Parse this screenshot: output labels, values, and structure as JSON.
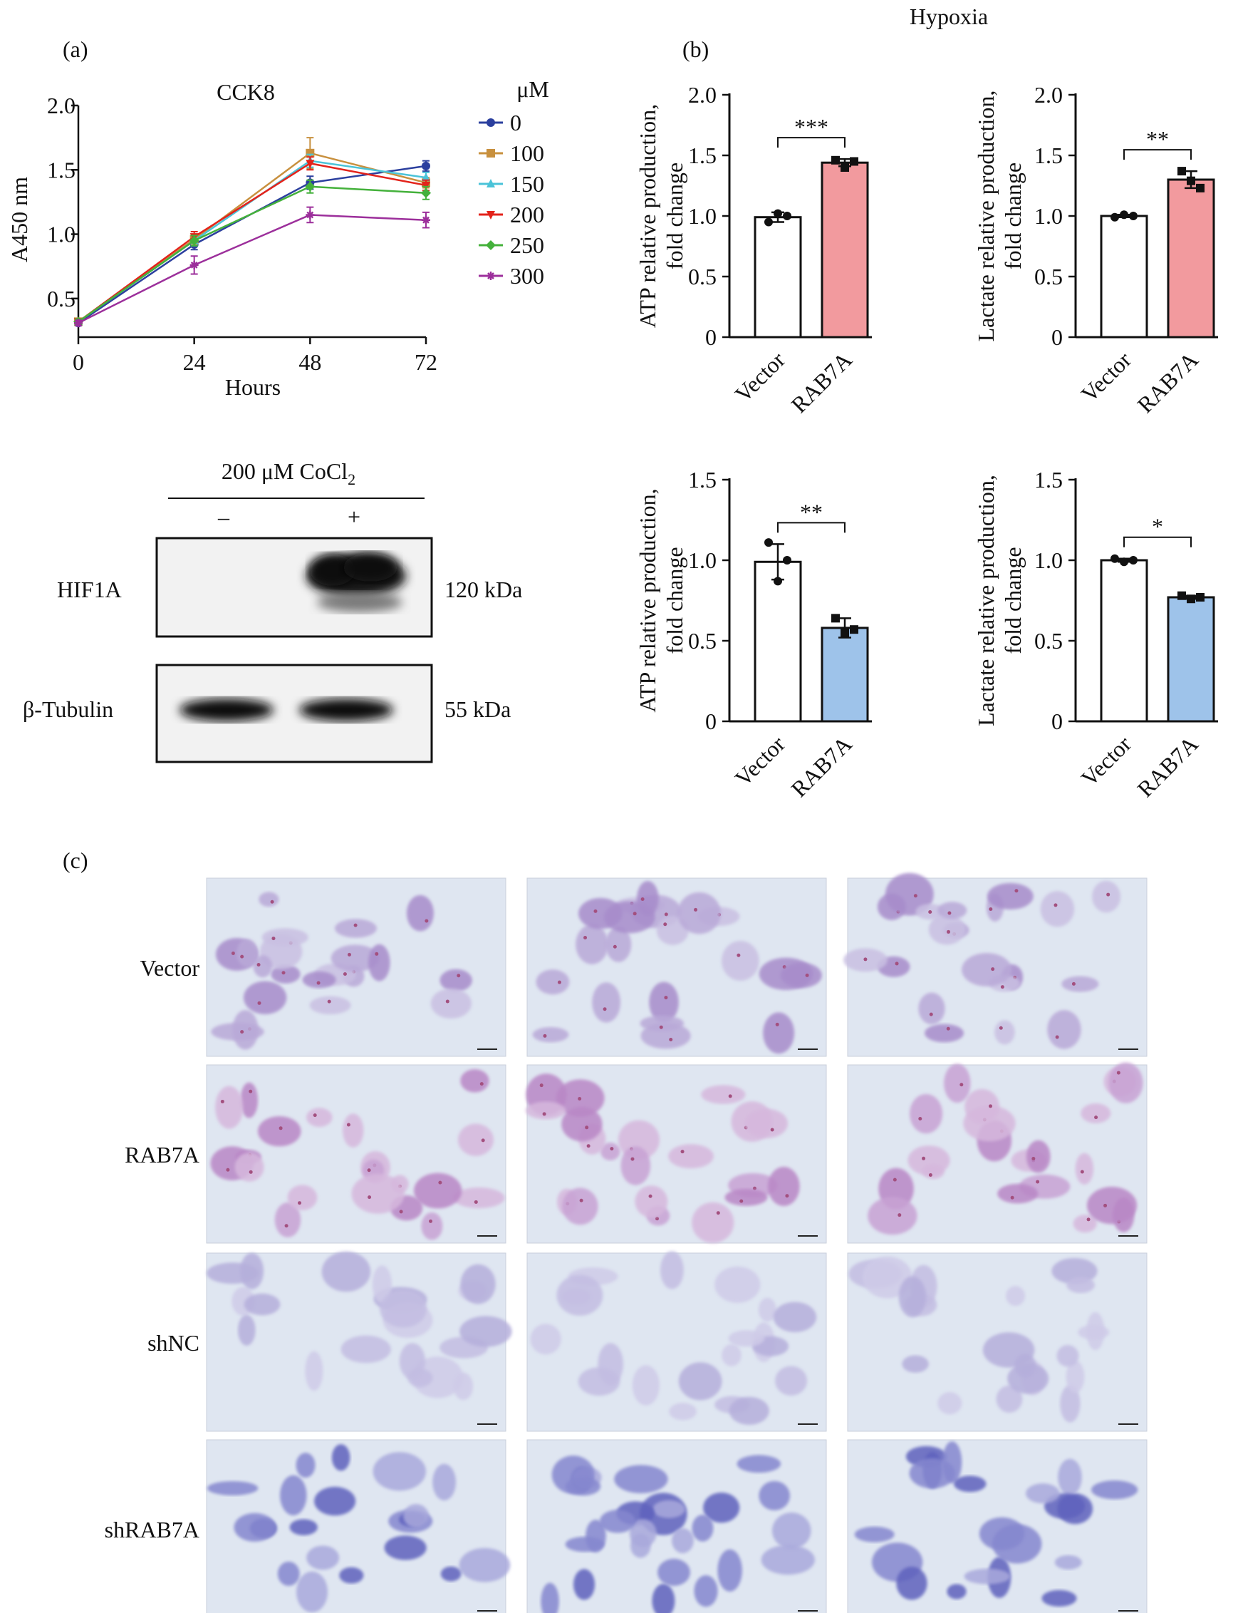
{
  "panels": {
    "a": "(a)",
    "b": "(b)",
    "c": "(c)",
    "hypoxia": "Hypoxia"
  },
  "chart_data": [
    {
      "id": "cck8",
      "type": "line",
      "title": "CCK8",
      "xlabel": "Hours",
      "ylabel": "A450 nm",
      "x": [
        0,
        24,
        48,
        72
      ],
      "xticks": [
        "0",
        "24",
        "48",
        "72"
      ],
      "yticks": [
        "0.5",
        "1.0",
        "1.5",
        "2.0"
      ],
      "xlim": [
        0,
        72
      ],
      "ylim": [
        0.2,
        2.0
      ],
      "legend_title": "μM",
      "legend_position": "right",
      "series": [
        {
          "name": "0",
          "color": "#2b3f9e",
          "marker": "circle",
          "values": [
            0.31,
            0.92,
            1.4,
            1.53
          ],
          "errors": [
            0.02,
            0.04,
            0.05,
            0.04
          ]
        },
        {
          "name": "100",
          "color": "#c8903e",
          "marker": "square",
          "values": [
            0.32,
            0.96,
            1.63,
            1.4
          ],
          "errors": [
            0.02,
            0.04,
            0.12,
            0.04
          ]
        },
        {
          "name": "150",
          "color": "#4ac3d8",
          "marker": "triangle",
          "values": [
            0.32,
            0.95,
            1.57,
            1.44
          ],
          "errors": [
            0.02,
            0.04,
            0.05,
            0.04
          ]
        },
        {
          "name": "200",
          "color": "#e3231b",
          "marker": "tri-down",
          "values": [
            0.32,
            0.98,
            1.55,
            1.38
          ],
          "errors": [
            0.02,
            0.04,
            0.05,
            0.04
          ]
        },
        {
          "name": "250",
          "color": "#44b13b",
          "marker": "diamond",
          "values": [
            0.32,
            0.95,
            1.37,
            1.32
          ],
          "errors": [
            0.02,
            0.04,
            0.05,
            0.05
          ]
        },
        {
          "name": "300",
          "color": "#9c2f9b",
          "marker": "star",
          "values": [
            0.31,
            0.76,
            1.15,
            1.11
          ],
          "errors": [
            0.02,
            0.07,
            0.06,
            0.06
          ]
        }
      ]
    },
    {
      "id": "b1",
      "type": "bar",
      "ylabel": [
        "ATP relative production,",
        "fold change"
      ],
      "categories": [
        "Vector",
        "RAB7A"
      ],
      "values": [
        0.99,
        1.44
      ],
      "errors": [
        0.04,
        0.03
      ],
      "points": [
        [
          0.95,
          1.02,
          1.0
        ],
        [
          1.46,
          1.4,
          1.45
        ]
      ],
      "colors": [
        "#ffffff",
        "#f29a9e"
      ],
      "ylim": [
        0,
        2.0
      ],
      "yticks": [
        "0",
        "0.5",
        "1.0",
        "1.5",
        "2.0"
      ],
      "significance": "***"
    },
    {
      "id": "b2",
      "type": "bar",
      "ylabel": [
        "Lactate relative production,",
        "fold change"
      ],
      "categories": [
        "Vector",
        "RAB7A"
      ],
      "values": [
        1.0,
        1.3
      ],
      "errors": [
        0.01,
        0.07
      ],
      "points": [
        [
          0.99,
          1.01,
          1.0
        ],
        [
          1.37,
          1.29,
          1.23
        ]
      ],
      "colors": [
        "#ffffff",
        "#f29a9e"
      ],
      "ylim": [
        0,
        2.0
      ],
      "yticks": [
        "0",
        "0.5",
        "1.0",
        "1.5",
        "2.0"
      ],
      "significance": "**"
    },
    {
      "id": "b3",
      "type": "bar",
      "ylabel": [
        "ATP relative production,",
        "fold change"
      ],
      "categories": [
        "Vector",
        "RAB7A"
      ],
      "values": [
        0.99,
        0.58
      ],
      "errors": [
        0.11,
        0.06
      ],
      "points": [
        [
          1.11,
          0.87,
          1.0
        ],
        [
          0.64,
          0.55,
          0.57
        ]
      ],
      "colors": [
        "#ffffff",
        "#9ec3ea"
      ],
      "ylim": [
        0,
        1.5
      ],
      "yticks": [
        "0",
        "0.5",
        "1.0",
        "1.5"
      ],
      "significance": "**"
    },
    {
      "id": "b4",
      "type": "bar",
      "ylabel": [
        "Lactate relative production,",
        "fold change"
      ],
      "categories": [
        "Vector",
        "RAB7A"
      ],
      "values": [
        1.0,
        0.77
      ],
      "errors": [
        0.01,
        0.01
      ],
      "points": [
        [
          1.01,
          0.99,
          1.0
        ],
        [
          0.78,
          0.76,
          0.77
        ]
      ],
      "colors": [
        "#ffffff",
        "#9ec3ea"
      ],
      "ylim": [
        0,
        1.5
      ],
      "yticks": [
        "0",
        "0.5",
        "1.0",
        "1.5"
      ],
      "significance": "*"
    }
  ],
  "western": {
    "treatment": "200 μM CoCl",
    "treatment_sub": "2",
    "minus": "–",
    "plus": "+",
    "hif1a": "HIF1A",
    "hif1a_kda": "120 kDa",
    "tubulin": "β-Tubulin",
    "tubulin_kda": "55 kDa"
  },
  "microscopy": {
    "rows": [
      "Vector",
      "RAB7A",
      "shNC",
      "shRAB7A"
    ]
  }
}
